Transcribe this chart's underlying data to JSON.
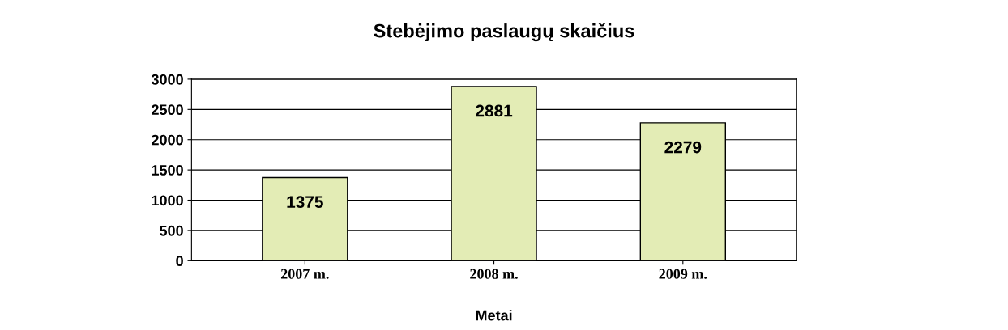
{
  "chart_data": {
    "type": "bar",
    "title": "Stebėjimo paslaugų skaičius",
    "xlabel": "Metai",
    "categories": [
      "2007 m.",
      "2008 m.",
      "2009 m."
    ],
    "values": [
      1375,
      2881,
      2279
    ],
    "color": "#e3ecb5",
    "ylim": [
      0,
      3000
    ],
    "yticks": [
      0,
      500,
      1000,
      1500,
      2000,
      2500,
      3000
    ],
    "grid": "y",
    "data_labels": true
  }
}
